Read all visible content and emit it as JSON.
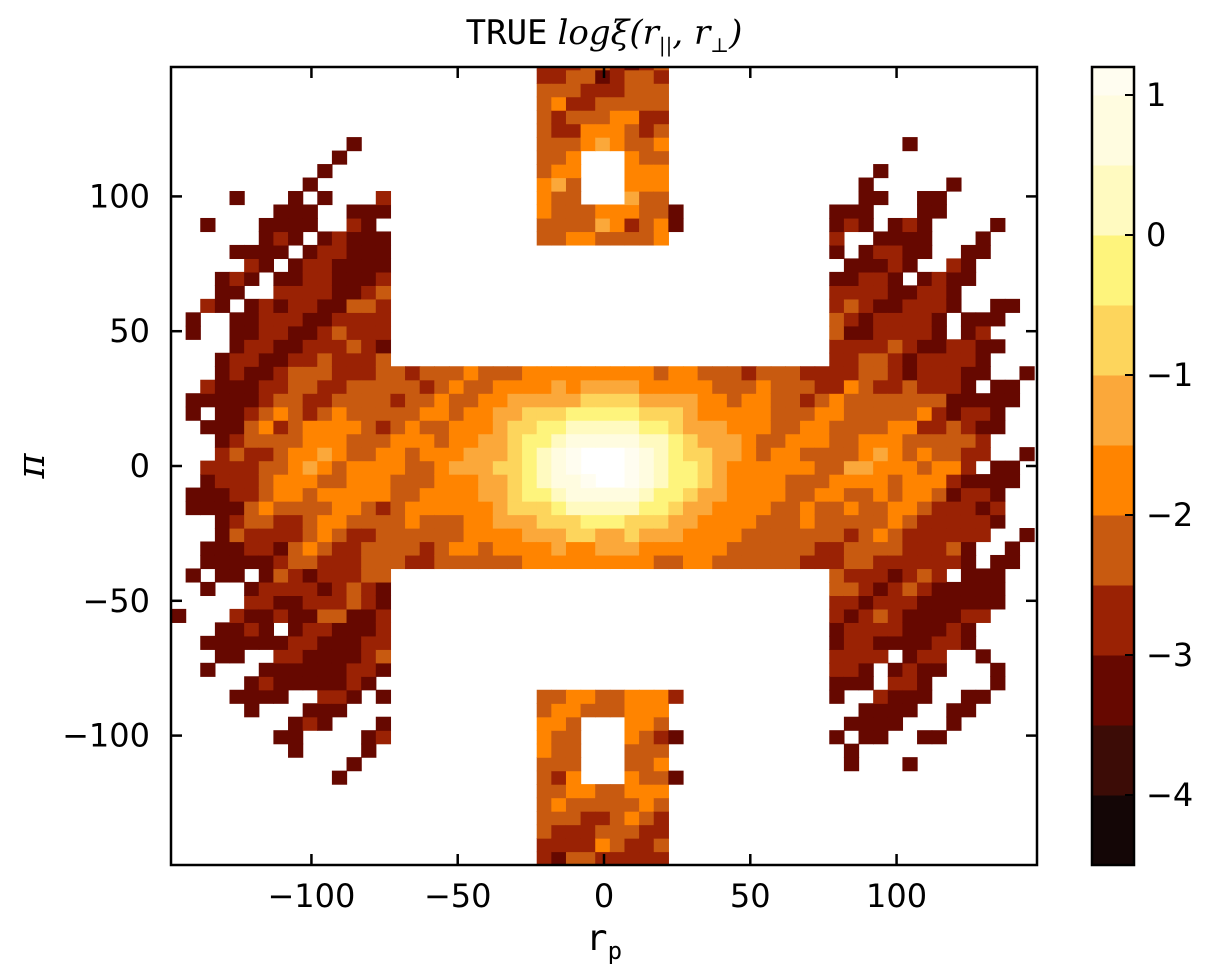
{
  "chart_data": {
    "type": "heatmap",
    "title_prefix": "TRUE",
    "title_math": "logξ(r||, r⊥)",
    "title_math_parts": {
      "func": "logξ(",
      "sym1": "r",
      "sub1": "||",
      "sep": ", ",
      "sym2": "r",
      "sub2": "⊥",
      "close": ")"
    },
    "xlabel": "r",
    "xlabel_sub": "p",
    "ylabel": "π",
    "xlim": [
      -148,
      148
    ],
    "ylim": [
      -148,
      148
    ],
    "xticks": [
      -100,
      -50,
      0,
      50,
      100
    ],
    "yticks": [
      -100,
      -50,
      0,
      50,
      100
    ],
    "xtick_labels": [
      "−100",
      "−50",
      "0",
      "50",
      "100"
    ],
    "ytick_labels": [
      "−100",
      "−50",
      "0",
      "50",
      "100"
    ],
    "colorbar": {
      "range": [
        -4.5,
        1.2
      ],
      "ticks": [
        -4,
        -3,
        -2,
        -1,
        0,
        1
      ],
      "tick_labels": [
        "−4",
        "−3",
        "−2",
        "−1",
        "0",
        "1"
      ],
      "levels": [
        -4.5,
        -4.0,
        -3.5,
        -3.0,
        -2.5,
        -2.0,
        -1.5,
        -1.0,
        -0.5,
        0.0,
        0.5,
        1.0,
        1.2
      ],
      "colors": [
        "#140606",
        "#3c0c06",
        "#660800",
        "#9a2204",
        "#c85a10",
        "#ff8400",
        "#fba83a",
        "#fdd55c",
        "#fef47c",
        "#fffac0",
        "#fffce0",
        "#fffdf0"
      ]
    },
    "blank_below": -3.5,
    "grid": false,
    "description": "Contour map symmetric in r_p and pi; central peak ~1 at (0,0) falling to about -2 at |r_p|~60; secondary side lobes near r_p=±100; white where undefined."
  }
}
